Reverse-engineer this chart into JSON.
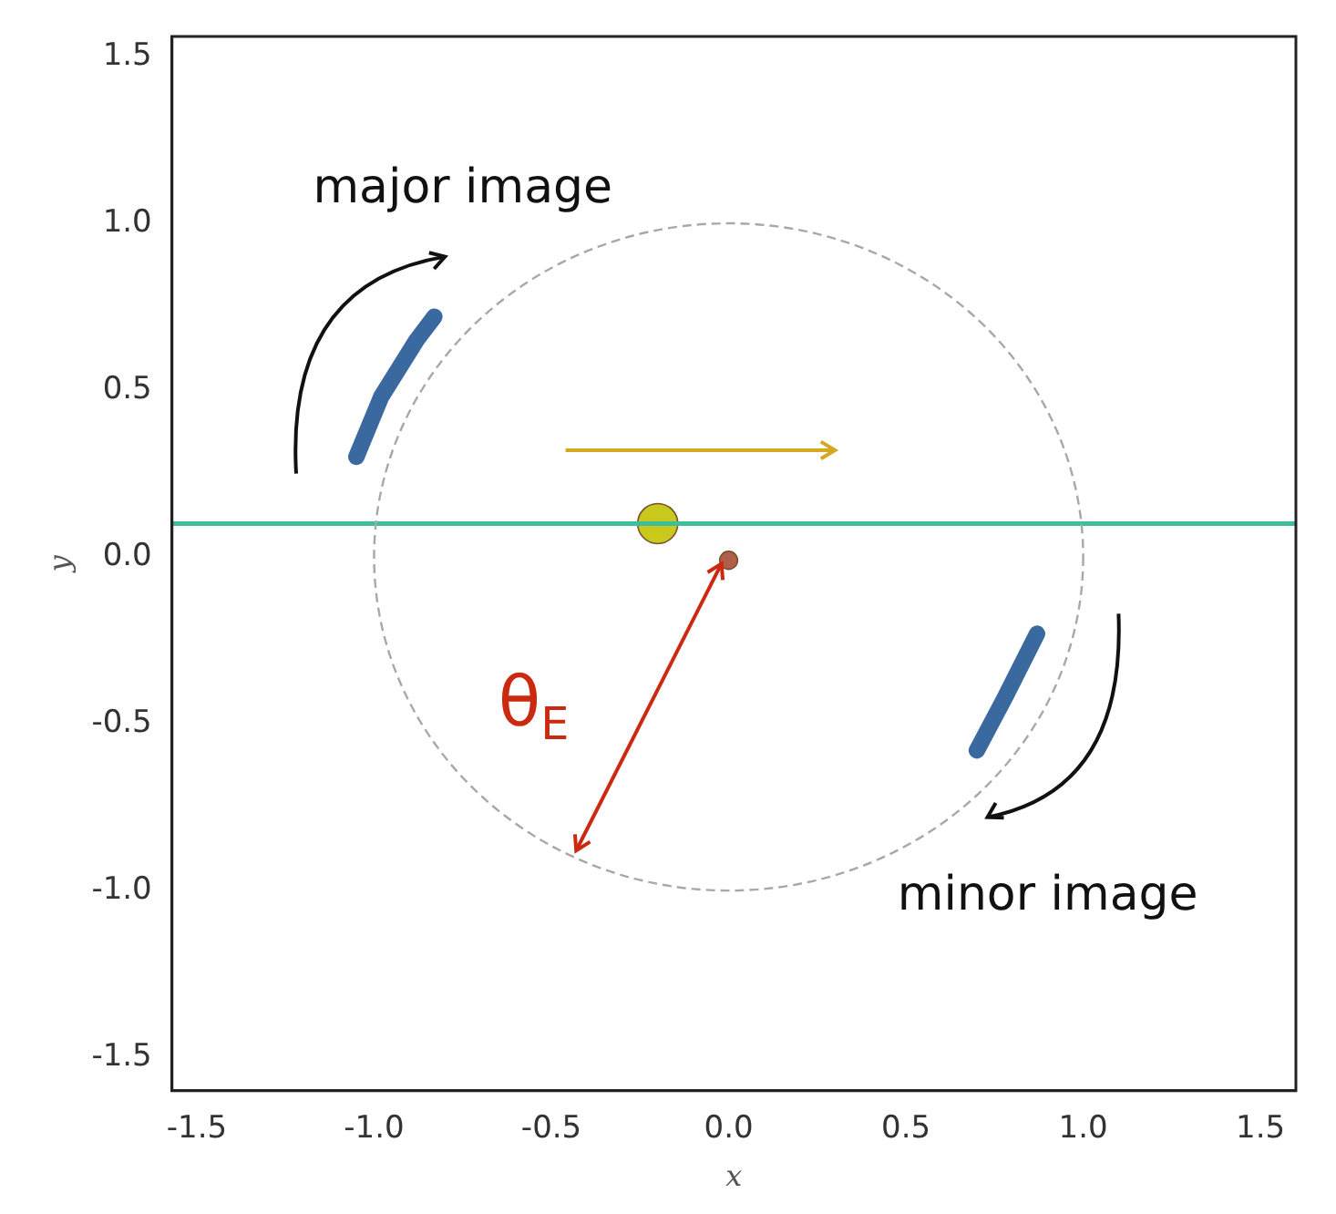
{
  "chart_data": {
    "type": "line",
    "xlabel": "x",
    "ylabel": "y",
    "xlim": [
      -1.57,
      1.6
    ],
    "ylim": [
      -1.6,
      1.56
    ],
    "xticks": [
      -1.5,
      {
        "value": -1,
        "label": "-1.0"
      },
      -0.5,
      {
        "value": 0,
        "label": "0.0"
      },
      0.5,
      {
        "value": 1,
        "label": "1.0"
      },
      1.5
    ],
    "yticks": [
      -1.5,
      {
        "value": -1,
        "label": "-1.0"
      },
      -0.5,
      {
        "value": 0,
        "label": "0.0"
      },
      0.5,
      {
        "value": 1,
        "label": "1.0"
      },
      1.5
    ],
    "grid": false,
    "legend": false,
    "series": [
      {
        "color": "#3cbf9a",
        "x": [
          -1.57,
          1.6
        ],
        "values": [
          0.1,
          0.1
        ]
      },
      {
        "color": "#3a69a0",
        "x": [
          -1.05,
          -0.98,
          -0.88,
          -0.83
        ],
        "values": [
          0.3,
          0.48,
          0.65,
          0.72
        ]
      },
      {
        "color": "#3a69a0",
        "x": [
          0.7,
          0.78,
          0.87
        ],
        "values": [
          -0.58,
          -0.42,
          -0.23
        ]
      },
      {
        "type": "bubble",
        "color": "#c9c81c",
        "x": [
          -0.2
        ],
        "values": [
          0.1
        ],
        "sizes": [
          1
        ]
      },
      {
        "type": "bubble",
        "color": "#b0604a",
        "x": [
          0
        ],
        "values": [
          -0.01
        ],
        "sizes": [
          0.2
        ]
      }
    ],
    "annotations": [
      "major image",
      "minor image",
      "θ$_{E}$"
    ]
  }
}
